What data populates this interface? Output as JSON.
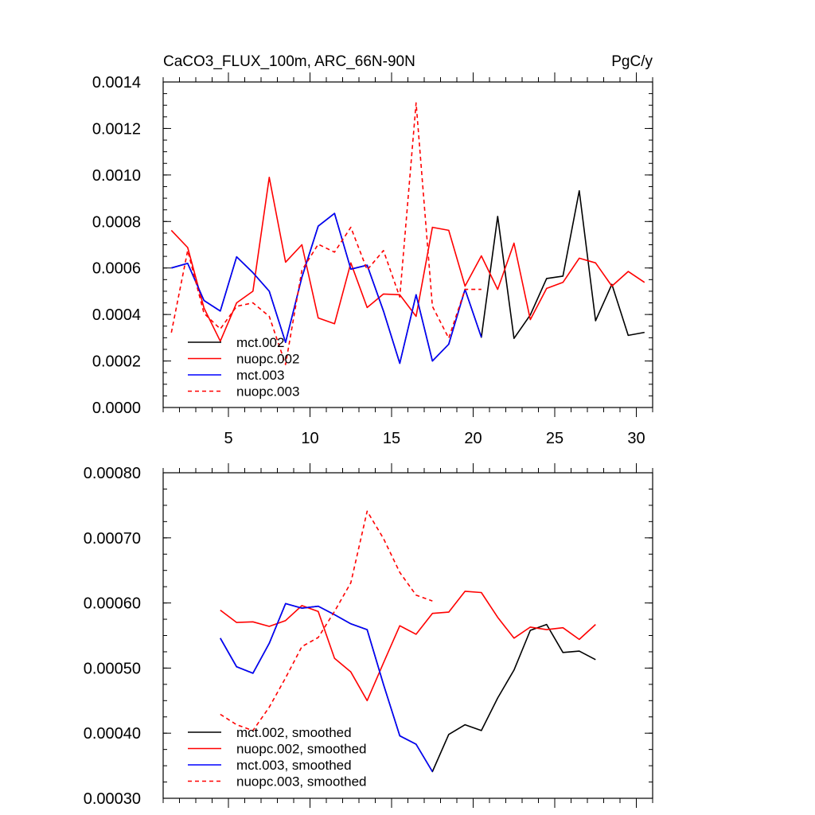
{
  "chart_data": [
    {
      "type": "line",
      "title": "CaCO3_FLUX_100m, ARC_66N-90N",
      "units": "PgC/y",
      "xlim": [
        1,
        31
      ],
      "ylim": [
        0,
        0.0014
      ],
      "x_ticks": [
        5,
        10,
        15,
        20,
        25,
        30
      ],
      "x_tick_labels": [
        "5",
        "10",
        "15",
        "20",
        "25",
        "30"
      ],
      "y_ticks": [
        0,
        0.0002,
        0.0004,
        0.0006,
        0.0008,
        0.001,
        0.0012,
        0.0014
      ],
      "y_tick_labels": [
        "0.0000",
        "0.0002",
        "0.0004",
        "0.0006",
        "0.0008",
        "0.0010",
        "0.0012",
        "0.0014"
      ],
      "legend_position": "bottom-left",
      "series": [
        {
          "name": "mct.002",
          "color": "#000000",
          "dash": "solid",
          "x": [
            1.5,
            2.5,
            3.5,
            4.5,
            5.5,
            6.5,
            7.5,
            8.5,
            9.5,
            10.5,
            11.5,
            12.5,
            13.5,
            14.5,
            15.5,
            16.5,
            17.5,
            18.5,
            19.5,
            20.5,
            21.5,
            22.5,
            23.5,
            24.5,
            25.5,
            26.5,
            27.5,
            28.5,
            29.5,
            30.5
          ],
          "y": [
            0.0006,
            0.00062,
            0.00046,
            0.000415,
            0.000648,
            0.00058,
            0.0005,
            0.00028,
            0.00056,
            0.00078,
            0.000835,
            0.000595,
            0.000612,
            0.000415,
            0.00019,
            0.000485,
            0.0002,
            0.000272,
            0.000508,
            0.000302,
            0.000822,
            0.000297,
            0.000398,
            0.000555,
            0.000565,
            0.000932,
            0.000373,
            0.00053,
            0.00031,
            0.000323
          ]
        },
        {
          "name": "nuopc.002",
          "color": "#ff0000",
          "dash": "solid",
          "x": [
            1.5,
            2.5,
            3.5,
            4.5,
            5.5,
            6.5,
            7.5,
            8.5,
            9.5,
            10.5,
            11.5,
            12.5,
            13.5,
            14.5,
            15.5,
            16.5,
            17.5,
            18.5,
            19.5,
            20.5,
            21.5,
            22.5,
            23.5,
            24.5,
            25.5,
            26.5,
            27.5,
            28.5,
            29.5,
            30.5
          ],
          "y": [
            0.000762,
            0.000688,
            0.000428,
            0.000285,
            0.00045,
            0.0005,
            0.00099,
            0.000625,
            0.0007,
            0.000385,
            0.00036,
            0.000622,
            0.00043,
            0.000488,
            0.000485,
            0.000392,
            0.000775,
            0.000762,
            0.000522,
            0.000652,
            0.000508,
            0.000707,
            0.000378,
            0.000512,
            0.000538,
            0.000642,
            0.000622,
            0.000522,
            0.000585,
            0.000538
          ]
        },
        {
          "name": "mct.003",
          "color": "#0000ff",
          "dash": "solid",
          "x": [
            1.5,
            2.5,
            3.5,
            4.5,
            5.5,
            6.5,
            7.5,
            8.5,
            9.5,
            10.5,
            11.5,
            12.5,
            13.5,
            14.5,
            15.5,
            16.5,
            17.5,
            18.5,
            19.5,
            20.5
          ],
          "y": [
            0.0006,
            0.00062,
            0.00046,
            0.000415,
            0.000648,
            0.00058,
            0.0005,
            0.00028,
            0.00056,
            0.00078,
            0.000835,
            0.000595,
            0.000612,
            0.000415,
            0.00019,
            0.000485,
            0.0002,
            0.000272,
            0.000508,
            0.000302
          ]
        },
        {
          "name": "nuopc.003",
          "color": "#ff0000",
          "dash": "dashed",
          "x": [
            1.5,
            2.5,
            3.5,
            4.5,
            5.5,
            6.5,
            7.5,
            8.5,
            9.5,
            10.5,
            11.5,
            12.5,
            13.5,
            14.5,
            15.5,
            16.5,
            17.5,
            18.5,
            19.5,
            20.5
          ],
          "y": [
            0.000322,
            0.000675,
            0.000405,
            0.000338,
            0.000435,
            0.00045,
            0.000392,
            0.000185,
            0.00059,
            0.000702,
            0.000668,
            0.000775,
            0.000592,
            0.000675,
            0.000475,
            0.00131,
            0.000435,
            0.000298,
            0.000508,
            0.000508
          ]
        }
      ]
    },
    {
      "type": "line",
      "xlim": [
        1,
        31
      ],
      "ylim": [
        0.0003,
        0.0008
      ],
      "x_ticks": [
        5,
        10,
        15,
        20,
        25,
        30
      ],
      "y_ticks": [
        0.0003,
        0.0004,
        0.0005,
        0.0006,
        0.0007,
        0.0008
      ],
      "y_tick_labels": [
        "0.00030",
        "0.00040",
        "0.00050",
        "0.00060",
        "0.00070",
        "0.00080"
      ],
      "legend_position": "bottom-left",
      "series": [
        {
          "name": "mct.002, smoothed",
          "color": "#000000",
          "dash": "solid",
          "x": [
            4.5,
            5.5,
            6.5,
            7.5,
            8.5,
            9.5,
            10.5,
            11.5,
            12.5,
            13.5,
            14.5,
            15.5,
            16.5,
            17.5,
            18.5,
            19.5,
            20.5,
            21.5,
            22.5,
            23.5,
            24.5,
            25.5,
            26.5,
            27.5
          ],
          "y": [
            0.000546,
            0.000502,
            0.000492,
            0.000538,
            0.000599,
            0.000592,
            0.000595,
            0.000582,
            0.000568,
            0.000559,
            0.000475,
            0.000396,
            0.000383,
            0.000341,
            0.000398,
            0.000413,
            0.000404,
            0.000454,
            0.000497,
            0.000558,
            0.000567,
            0.000524,
            0.000526,
            0.000513
          ]
        },
        {
          "name": "nuopc.002, smoothed",
          "color": "#ff0000",
          "dash": "solid",
          "x": [
            4.5,
            5.5,
            6.5,
            7.5,
            8.5,
            9.5,
            10.5,
            11.5,
            12.5,
            13.5,
            14.5,
            15.5,
            16.5,
            17.5,
            18.5,
            19.5,
            20.5,
            21.5,
            22.5,
            23.5,
            24.5,
            25.5,
            26.5,
            27.5
          ],
          "y": [
            0.000589,
            0.00057,
            0.000571,
            0.000564,
            0.000573,
            0.000596,
            0.000587,
            0.000515,
            0.000494,
            0.00045,
            0.000508,
            0.000565,
            0.000552,
            0.000584,
            0.000586,
            0.000618,
            0.000616,
            0.000578,
            0.000546,
            0.000563,
            0.000559,
            0.000562,
            0.000544,
            0.000567
          ]
        },
        {
          "name": "mct.003, smoothed",
          "color": "#0000ff",
          "dash": "solid",
          "x": [
            4.5,
            5.5,
            6.5,
            7.5,
            8.5,
            9.5,
            10.5,
            11.5,
            12.5,
            13.5,
            14.5,
            15.5,
            16.5,
            17.5
          ],
          "y": [
            0.000546,
            0.000502,
            0.000492,
            0.000538,
            0.000599,
            0.000592,
            0.000595,
            0.000582,
            0.000568,
            0.000559,
            0.000475,
            0.000396,
            0.000383,
            0.000341
          ]
        },
        {
          "name": "nuopc.003, smoothed",
          "color": "#ff0000",
          "dash": "dashed",
          "x": [
            4.5,
            5.5,
            6.5,
            7.5,
            8.5,
            9.5,
            10.5,
            11.5,
            12.5,
            13.5,
            14.5,
            15.5,
            16.5,
            17.5
          ],
          "y": [
            0.000429,
            0.000413,
            0.000404,
            0.00044,
            0.000485,
            0.000533,
            0.000547,
            0.000587,
            0.000631,
            0.000741,
            0.000699,
            0.000647,
            0.000612,
            0.000603
          ]
        }
      ]
    }
  ]
}
